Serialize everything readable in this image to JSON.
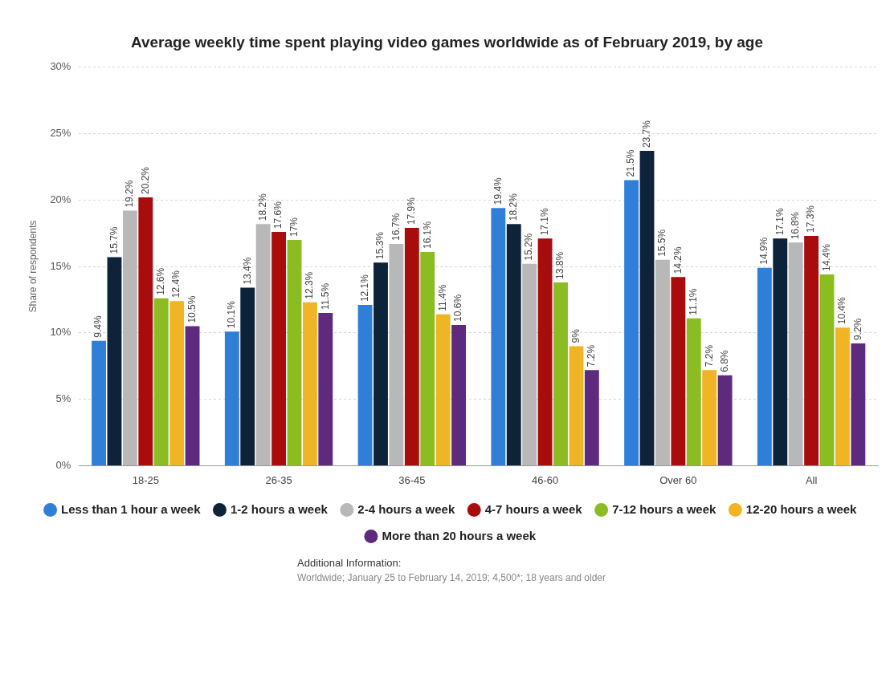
{
  "chart_data": {
    "type": "bar",
    "title": "Average weekly time spent playing video games worldwide as of February 2019, by age",
    "ylabel": "Share of respondents",
    "categories": [
      "18-25",
      "26-35",
      "36-45",
      "46-60",
      "Over 60",
      "All"
    ],
    "series": [
      {
        "name": "Less than 1 hour a week",
        "color": "#2f7ed8",
        "values": [
          9.4,
          10.1,
          12.1,
          19.4,
          21.5,
          14.9
        ],
        "value_labels": [
          "9.4%",
          "10.1%",
          "12.1%",
          "19.4%",
          "21.5%",
          "14.9%"
        ]
      },
      {
        "name": "1-2 hours a week",
        "color": "#0d233a",
        "values": [
          15.7,
          13.4,
          15.3,
          18.2,
          23.7,
          17.1
        ],
        "value_labels": [
          "15.7%",
          "13.4%",
          "15.3%",
          "18.2%",
          "23.7%",
          "17.1%"
        ]
      },
      {
        "name": "2-4 hours a week",
        "color": "#b8b8b8",
        "values": [
          19.2,
          18.2,
          16.7,
          15.2,
          15.5,
          16.8
        ],
        "value_labels": [
          "19.2%",
          "18.2%",
          "16.7%",
          "15.2%",
          "15.5%",
          "16.8%"
        ]
      },
      {
        "name": "4-7 hours a week",
        "color": "#a90c0c",
        "values": [
          20.2,
          17.6,
          17.9,
          17.1,
          14.2,
          17.3
        ],
        "value_labels": [
          "20.2%",
          "17.6%",
          "17.9%",
          "17.1%",
          "14.2%",
          "17.3%"
        ]
      },
      {
        "name": "7-12 hours a week",
        "color": "#8bbc21",
        "values": [
          12.6,
          17,
          16.1,
          13.8,
          11.1,
          14.4
        ],
        "value_labels": [
          "12.6%",
          "17%",
          "16.1%",
          "13.8%",
          "11.1%",
          "14.4%"
        ]
      },
      {
        "name": "12-20 hours a week",
        "color": "#f0b525",
        "values": [
          12.4,
          12.3,
          11.4,
          9,
          7.2,
          10.4
        ],
        "value_labels": [
          "12.4%",
          "12.3%",
          "11.4%",
          "9%",
          "7.2%",
          "10.4%"
        ]
      },
      {
        "name": "More than 20 hours a week",
        "color": "#5e2a7e",
        "values": [
          10.5,
          11.5,
          10.6,
          7.2,
          6.8,
          9.2
        ],
        "value_labels": [
          "10.5%",
          "11.5%",
          "10.6%",
          "7.2%",
          "6.8%",
          "9.2%"
        ]
      }
    ],
    "ylim": [
      0,
      30
    ],
    "yticks": [
      {
        "value": 0,
        "label": "0%"
      },
      {
        "value": 5,
        "label": "5%"
      },
      {
        "value": 10,
        "label": "10%"
      },
      {
        "value": 15,
        "label": "15%"
      },
      {
        "value": 20,
        "label": "20%"
      },
      {
        "value": 25,
        "label": "25%"
      },
      {
        "value": 30,
        "label": "30%"
      }
    ],
    "grid": "y",
    "legend": "bottom",
    "annotations": [
      "Additional Information:",
      "Worldwide; January 25 to February 14, 2019; 4,500*; 18 years and older"
    ]
  }
}
